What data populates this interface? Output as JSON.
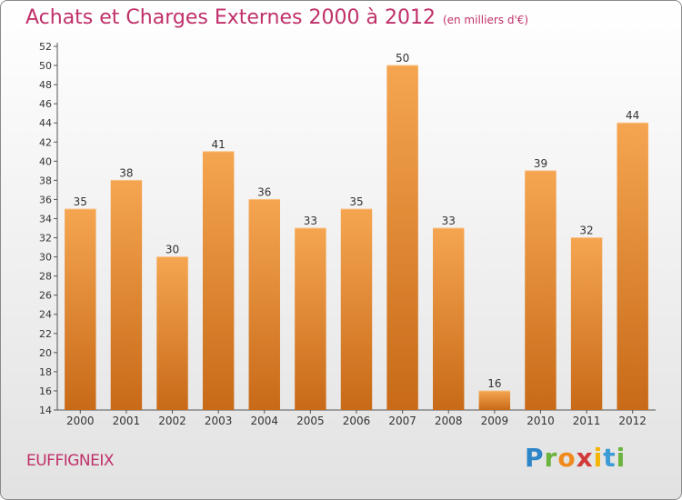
{
  "header": {
    "title": "Achats et Charges Externes 2000 à 2012",
    "subtitle": "(en milliers d'€)"
  },
  "footer": {
    "commune": "EUFFIGNEIX",
    "logo_letters": [
      "P",
      "r",
      "o",
      "x",
      "i",
      "t",
      "i"
    ],
    "logo_colors": [
      "#2e86c8",
      "#6bb33c",
      "#f08a1c",
      "#d23a3a",
      "#f4b400",
      "#3a9bd5",
      "#6bb33c"
    ]
  },
  "chart_data": {
    "type": "bar",
    "title": "Achats et Charges Externes 2000 à 2012",
    "categories": [
      "2000",
      "2001",
      "2002",
      "2003",
      "2004",
      "2005",
      "2006",
      "2007",
      "2008",
      "2009",
      "2010",
      "2011",
      "2012"
    ],
    "values": [
      35,
      38,
      30,
      41,
      36,
      33,
      35,
      50,
      33,
      16,
      39,
      32,
      44
    ],
    "ylim": [
      14,
      52
    ],
    "yticks": [
      14,
      16,
      18,
      20,
      22,
      24,
      26,
      28,
      30,
      32,
      34,
      36,
      38,
      40,
      42,
      44,
      46,
      48,
      50,
      52
    ],
    "xlabel": "",
    "ylabel": "",
    "grid": false,
    "bar_color_top": "#f5a550",
    "bar_color_bottom": "#c86a18"
  }
}
